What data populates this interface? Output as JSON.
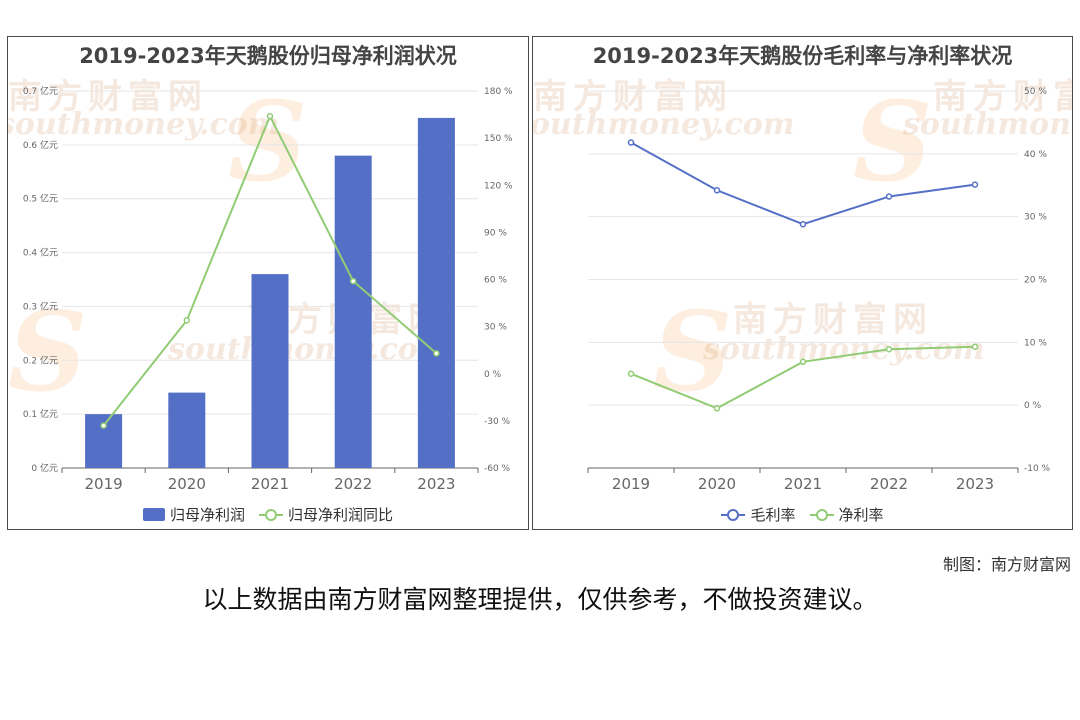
{
  "colors": {
    "bar": "#5470c6",
    "yoy_line": "#91cc75",
    "gross_margin_line": "#5470c6",
    "net_margin_line": "#91cc75",
    "axis": "#666666",
    "grid": "#e6e6e6"
  },
  "watermark": {
    "cn": "南方财富网",
    "en": "southmoney.com",
    "s": "S"
  },
  "credit": "制图：南方财富网",
  "disclaimer": "以上数据由南方财富网整理提供，仅供参考，不做投资建议。",
  "chart_data": [
    {
      "type": "bar",
      "title": "2019-2023年天鹅股份归母净利润状况",
      "categories": [
        "2019",
        "2020",
        "2021",
        "2022",
        "2023"
      ],
      "y_left": {
        "unit": "亿元",
        "ylim": [
          0,
          0.7
        ],
        "step": 0.1
      },
      "y_right": {
        "unit": "%",
        "ylim": [
          -60,
          180
        ],
        "step": 30
      },
      "grid": true,
      "legend_position": "bottom",
      "series": [
        {
          "name": "归母净利润",
          "type": "bar",
          "axis": "left",
          "values": [
            0.1,
            0.14,
            0.36,
            0.58,
            0.65
          ]
        },
        {
          "name": "归母净利润同比",
          "type": "line",
          "axis": "right",
          "values": [
            -33,
            34,
            164,
            59,
            13
          ]
        }
      ]
    },
    {
      "type": "line",
      "title": "2019-2023年天鹅股份毛利率与净利率状况",
      "categories": [
        "2019",
        "2020",
        "2021",
        "2022",
        "2023"
      ],
      "y_right": {
        "unit": "%",
        "ylim": [
          -10,
          50
        ],
        "step": 10
      },
      "grid": true,
      "legend_position": "bottom",
      "series": [
        {
          "name": "毛利率",
          "values": [
            41.8,
            34.2,
            28.8,
            33.2,
            35.1
          ]
        },
        {
          "name": "净利率",
          "values": [
            5.0,
            -0.5,
            6.9,
            8.9,
            9.3
          ]
        }
      ]
    }
  ]
}
